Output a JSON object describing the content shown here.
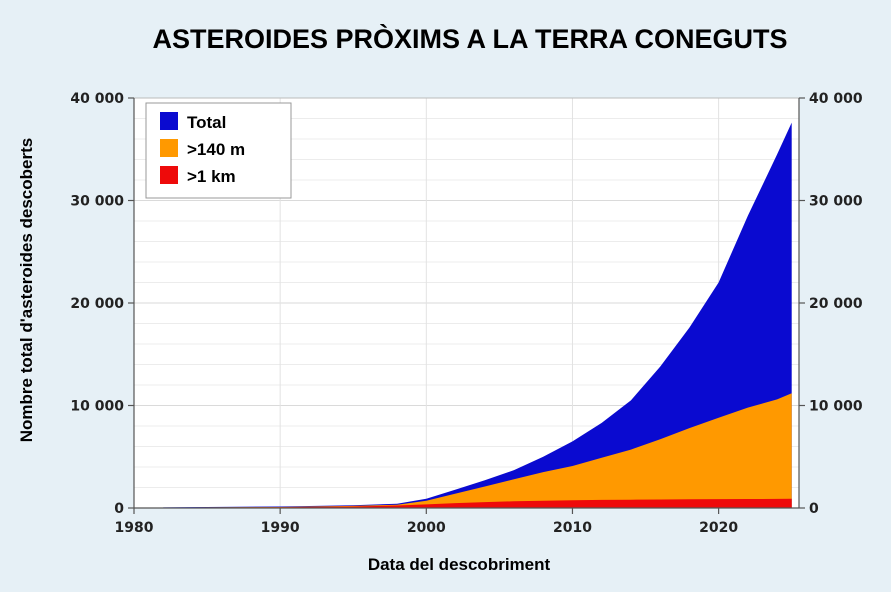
{
  "chart_data": {
    "type": "area",
    "title": "ASTEROIDES PRÒXIMS A LA TERRA CONEGUTS",
    "xlabel": "Data del descobriment",
    "ylabel": "Nombre total d'asteroides descoberts",
    "xlim": [
      1980,
      2025.5
    ],
    "ylim": [
      0,
      40000
    ],
    "x_ticks": [
      1980,
      1990,
      2000,
      2010,
      2020
    ],
    "x_tick_labels": [
      "1980",
      "1990",
      "2000",
      "2010",
      "2020"
    ],
    "y_ticks": [
      0,
      10000,
      20000,
      30000,
      40000
    ],
    "y_tick_labels": [
      "0",
      "10 000",
      "20 000",
      "30 000",
      "40 000"
    ],
    "grid": true,
    "secondary_y_axis": true,
    "legend_position": "top-left",
    "x": [
      1982,
      1985,
      1990,
      1995,
      1998,
      2000,
      2002,
      2004,
      2006,
      2008,
      2010,
      2012,
      2014,
      2016,
      2018,
      2020,
      2022,
      2024,
      2025
    ],
    "series": [
      {
        "name": "Total",
        "color": "#0a0ad0",
        "values": [
          60,
          100,
          150,
          260,
          420,
          900,
          1800,
          2700,
          3700,
          5000,
          6500,
          8300,
          10500,
          13800,
          17600,
          22000,
          28500,
          34500,
          37600
        ]
      },
      {
        "name": ">140 m",
        "color": "#ff9900",
        "values": [
          30,
          60,
          100,
          200,
          320,
          700,
          1400,
          2100,
          2800,
          3500,
          4100,
          4900,
          5700,
          6700,
          7800,
          8800,
          9800,
          10600,
          11200
        ]
      },
      {
        "name": ">1 km",
        "color": "#ee0a0a",
        "values": [
          20,
          40,
          80,
          150,
          240,
          350,
          480,
          580,
          650,
          700,
          760,
          790,
          810,
          830,
          850,
          870,
          880,
          890,
          900
        ]
      }
    ]
  }
}
